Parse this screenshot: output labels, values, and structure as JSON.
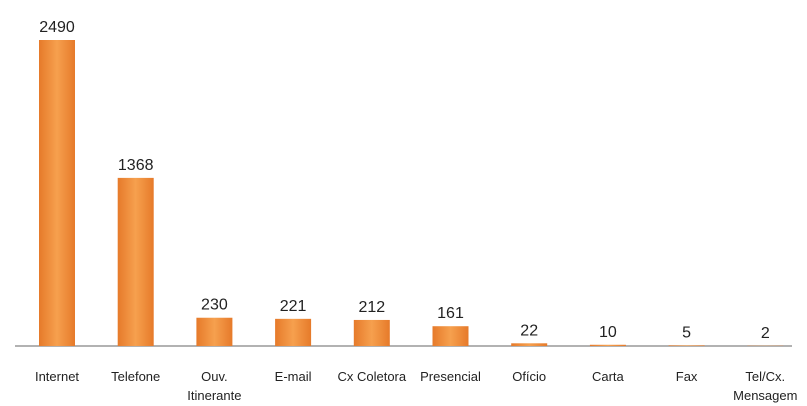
{
  "chart_data": {
    "type": "bar",
    "categories": [
      "Internet",
      "Telefone",
      "Ouv. Itinerante",
      "E-mail",
      "Cx Coletora",
      "Presencial",
      "Ofício",
      "Carta",
      "Fax",
      "Tel/Cx. Mensagem"
    ],
    "values": [
      2490,
      1368,
      230,
      221,
      212,
      161,
      22,
      10,
      5,
      2
    ],
    "color": "#ee8a3c"
  }
}
